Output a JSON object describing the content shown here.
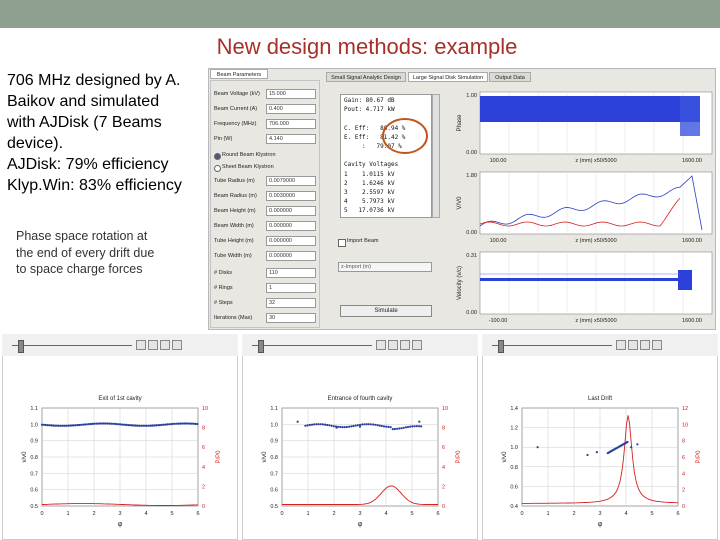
{
  "header": {
    "title": "New design methods: example"
  },
  "description": {
    "lines": [
      "706 MHz designed by A.",
      "Baikov and simulated",
      "with AJDisk  (7 Beams",
      "device).",
      "AJDisk: 79% efficiency",
      "Klyp.Win: 83% efficiency"
    ]
  },
  "caption": {
    "lines": [
      "Phase space rotation at",
      "the end of every drift due",
      "to space charge forces"
    ]
  },
  "app": {
    "tabs": [
      "Beam Parameters",
      "Small Signal Analytic Design",
      "Large Signal Disk Simulation",
      "Output Data"
    ],
    "params": [
      {
        "label": "Beam Voltage (kV)",
        "value": "15.000"
      },
      {
        "label": "Beam Current (A)",
        "value": "0.400"
      },
      {
        "label": "Frequency (MHz)",
        "value": "706.000"
      },
      {
        "label": "Pin (W)",
        "value": "4.140"
      },
      {
        "label": "Tube Radius (m)",
        "value": "0.0079000"
      },
      {
        "label": "Beam Radius (m)",
        "value": "0.0030000"
      },
      {
        "label": "Beam Height (m)",
        "value": "0.000000"
      },
      {
        "label": "Beam Width (m)",
        "value": "0.000000"
      },
      {
        "label": "Tube Height (m)",
        "value": "0.000000"
      },
      {
        "label": "Tube Width (m)",
        "value": "0.000000"
      },
      {
        "label": "# Disks",
        "value": "110"
      },
      {
        "label": "# Rings",
        "value": "1"
      },
      {
        "label": "# Steps",
        "value": "32"
      },
      {
        "label": "Iterations (Max)",
        "value": "30"
      }
    ],
    "radios": [
      "Round Beam Klystron",
      "Sheet Beam Klystron"
    ],
    "readout": [
      "Gain: 80.67 dB",
      "Pout: 4.717 kW",
      "C. Eff:   86.94 %",
      "E. Eff:   81.42 %",
      "     :   79.07 %",
      "Cavity Voltages",
      "1    1.0115 kV",
      "2    1.6246 kV",
      "3    2.5597 kV",
      "4    5.7973 kV",
      "5   17.0736 kV"
    ],
    "import_beam": "Import Beam",
    "z_import": "z-Import (m)",
    "button": "Simulate",
    "plots": [
      {
        "ylabel": "Phase",
        "yticks": [
          "1.00",
          "0.00"
        ],
        "xticks": [
          "100.00",
          "z (mm) x50/5000",
          "1600.00"
        ]
      },
      {
        "ylabel": "V/V0",
        "yticks": [
          "1.80",
          "0.00"
        ],
        "xticks": [
          "100.00",
          "z (mm) x50/5000",
          "1600.00"
        ]
      },
      {
        "ylabel": "Velocity (v/c)",
        "yticks": [
          "0.31",
          "0.00"
        ],
        "xticks": [
          "-100.00",
          "z (mm) x50/5000",
          "1600.00"
        ]
      }
    ]
  },
  "bottom_plots": [
    {
      "title": "Exit of 1st cavity",
      "xlabel": "φ",
      "ylabel_left": "v/v0",
      "ylabel_right": "P/P0",
      "yticks_left": [
        "1.1",
        "1.0",
        "0.9",
        "0.8",
        "0.7",
        "0.6",
        "0.5"
      ],
      "yticks_right": [
        "10",
        "8",
        "6",
        "4",
        "2",
        "0"
      ],
      "xticks": [
        "0",
        "1",
        "2",
        "3",
        "4",
        "5",
        "6"
      ]
    },
    {
      "title": "Entrance of fourth cavity",
      "xlabel": "φ",
      "ylabel_left": "v/v0",
      "ylabel_right": "P/P0",
      "yticks_left": [
        "1.1",
        "1.0",
        "0.9",
        "0.8",
        "0.7",
        "0.6",
        "0.5"
      ],
      "yticks_right": [
        "10",
        "8",
        "6",
        "4",
        "2",
        "0"
      ],
      "xticks": [
        "0",
        "1",
        "2",
        "3",
        "4",
        "5",
        "6"
      ]
    },
    {
      "title": "Last Drift",
      "xlabel": "φ",
      "ylabel_left": "v/v0",
      "ylabel_right": "P/P0",
      "yticks_left": [
        "1.4",
        "1.2",
        "1.0",
        "0.8",
        "0.6",
        "0.4"
      ],
      "yticks_right": [
        "12",
        "10",
        "8",
        "6",
        "4",
        "2",
        "0"
      ],
      "xticks": [
        "0",
        "1",
        "2",
        "3",
        "4",
        "5",
        "6"
      ]
    }
  ]
}
